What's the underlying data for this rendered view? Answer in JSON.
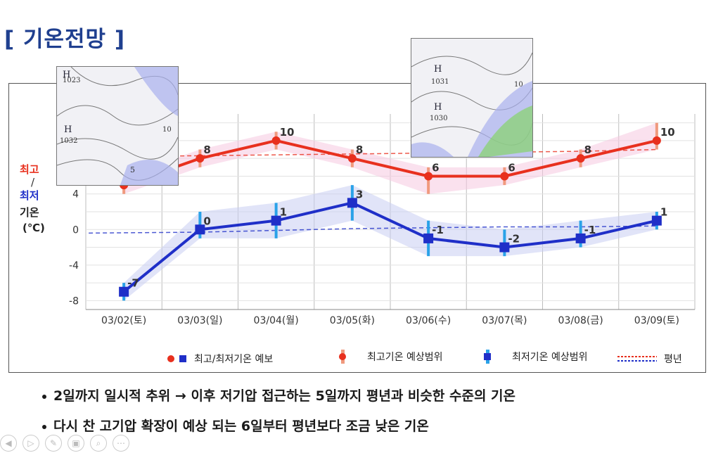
{
  "page": {
    "title": "[ 기온전망 ]"
  },
  "y_axis_title": {
    "max": "최고",
    "slash": "/",
    "min": "최저",
    "temp": "기온",
    "unit": "(℃)"
  },
  "chart_data": {
    "type": "line",
    "categories": [
      "03/02(토)",
      "03/03(일)",
      "03/04(월)",
      "03/05(화)",
      "03/06(수)",
      "03/07(목)",
      "03/08(금)",
      "03/09(토)"
    ],
    "yticks": [
      -8,
      -4,
      0,
      4
    ],
    "ylim": [
      -9,
      13
    ],
    "grid": true,
    "series": [
      {
        "name": "최고기온",
        "color": "#e8301e",
        "values": [
          5,
          8,
          10,
          8,
          6,
          6,
          8,
          10
        ],
        "range_low": [
          4,
          7,
          9,
          7,
          4,
          5,
          7,
          9
        ],
        "range_high": [
          6,
          9,
          11,
          9,
          7,
          7,
          9,
          12
        ],
        "normal": [
          8.2,
          8.3,
          8.4,
          8.5,
          8.6,
          8.7,
          8.8,
          9.0
        ]
      },
      {
        "name": "최저기온",
        "color": "#1f2fc8",
        "values": [
          -7,
          0,
          1,
          3,
          -1,
          -2,
          -1,
          1
        ],
        "range_low": [
          -8,
          -1,
          -1,
          1,
          -3,
          -3,
          -2,
          0
        ],
        "range_high": [
          -6,
          2,
          3,
          5,
          1,
          0,
          1,
          2
        ],
        "normal": [
          -0.4,
          -0.3,
          -0.1,
          0.1,
          0.2,
          0.3,
          0.3,
          0.4
        ]
      }
    ],
    "legend": [
      {
        "label": "최고/최저기온 예보"
      },
      {
        "label": "최고기온 예상범위"
      },
      {
        "label": "최저기온 예상범위"
      },
      {
        "label": "평년"
      }
    ]
  },
  "maps": [
    {
      "labels": [
        "H",
        "1023",
        "H",
        "1032",
        "10",
        "5"
      ]
    },
    {
      "labels": [
        "H",
        "1031",
        "H",
        "1030",
        "10"
      ]
    }
  ],
  "bullets": [
    "2일까지 일시적 추위 → 이후 저기압 접근하는 5일까지 평년과 비슷한 수준의 기온",
    "다시 찬 고기압 확장이 예상 되는 6일부터 평년보다 조금 낮은 기온"
  ],
  "toolbar": [
    "◀",
    "▷",
    "✎",
    "▣",
    "⌕",
    "⋯"
  ]
}
